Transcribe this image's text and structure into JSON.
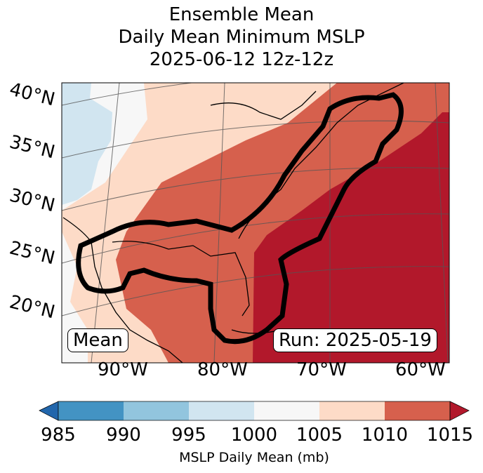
{
  "title": {
    "line1": "Ensemble Mean",
    "line2": "Daily Mean Minimum MSLP",
    "line3": "2025-06-12 12z-12z"
  },
  "map": {
    "lat_labels": [
      "40°N",
      "35°N",
      "30°N",
      "25°N",
      "20°N"
    ],
    "lon_labels": [
      "90°W",
      "80°W",
      "70°W",
      "60°W"
    ],
    "mean_label": "Mean",
    "run_label": "Run: 2025-05-19"
  },
  "colorbar": {
    "label": "MSLP Daily Mean (mb)",
    "ticks": [
      "985",
      "990",
      "995",
      "1000",
      "1005",
      "1010",
      "1015"
    ],
    "colors": [
      "#2166ac",
      "#4393c3",
      "#92c5de",
      "#d1e5f0",
      "#f7f7f7",
      "#fddbc7",
      "#d6604d",
      "#b2182b"
    ]
  }
}
